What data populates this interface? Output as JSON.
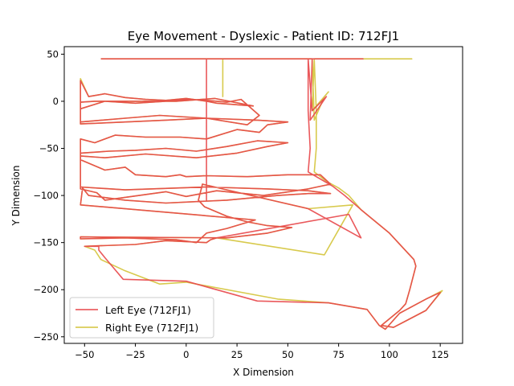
{
  "chart_data": {
    "type": "line",
    "title": "Eye Movement - Dyslexic - Patient ID: 712FJ1",
    "xlabel": "X Dimension",
    "ylabel": "Y Dimension",
    "xlim": [
      -60,
      136
    ],
    "ylim": [
      -257,
      58
    ],
    "xticks": [
      -50,
      -25,
      0,
      25,
      50,
      75,
      100,
      125
    ],
    "yticks": [
      50,
      0,
      -50,
      -100,
      -150,
      -200,
      -250
    ],
    "grid": false,
    "legend_position": "lower-left",
    "series": [
      {
        "name": "Left Eye (712FJ1)",
        "color": "#e8474a",
        "points": [
          [
            -42,
            45
          ],
          [
            10,
            45
          ],
          [
            10,
            44
          ],
          [
            10,
            -105
          ],
          [
            10,
            45
          ],
          [
            62,
            45
          ],
          [
            62,
            44
          ],
          [
            61,
            -20
          ],
          [
            69,
            5
          ],
          [
            62,
            -10
          ],
          [
            60,
            45
          ],
          [
            86,
            45
          ],
          [
            87,
            45
          ],
          [
            60,
            45
          ],
          [
            60,
            44
          ],
          [
            60,
            -10
          ],
          [
            61,
            -50
          ],
          [
            60,
            -75
          ],
          [
            68,
            -85
          ],
          [
            72,
            -90
          ],
          [
            78,
            -100
          ],
          [
            86,
            -115
          ],
          [
            100,
            -140
          ],
          [
            112,
            -168
          ],
          [
            113,
            -175
          ],
          [
            110,
            -200
          ],
          [
            108,
            -215
          ],
          [
            105,
            -222
          ],
          [
            96,
            -238
          ],
          [
            102,
            -240
          ],
          [
            118,
            -222
          ],
          [
            125,
            -203
          ],
          [
            118,
            -210
          ],
          [
            105,
            -225
          ],
          [
            98,
            -242
          ],
          [
            95,
            -238
          ],
          [
            89,
            -221
          ],
          [
            70,
            -214
          ],
          [
            35,
            -212
          ],
          [
            0,
            -191
          ],
          [
            -31,
            -189
          ],
          [
            -40,
            -166
          ],
          [
            -43,
            -158
          ],
          [
            -43,
            -154
          ],
          [
            -50,
            -154
          ],
          [
            -25,
            -152
          ],
          [
            -10,
            -148
          ],
          [
            10,
            -150
          ],
          [
            12,
            -147
          ],
          [
            15,
            -145
          ],
          [
            80,
            -120
          ],
          [
            86,
            -145
          ],
          [
            60,
            -114
          ],
          [
            38,
            -103
          ],
          [
            20,
            -94
          ],
          [
            8,
            -88
          ],
          [
            6,
            -105
          ],
          [
            9,
            -112
          ],
          [
            20,
            -122
          ],
          [
            30,
            -128
          ],
          [
            40,
            -132
          ],
          [
            52,
            -134
          ],
          [
            40,
            -140
          ],
          [
            20,
            -145
          ],
          [
            -52,
            -144
          ],
          [
            -52,
            -145
          ],
          [
            -52,
            -146
          ],
          [
            -30,
            -145
          ],
          [
            -5,
            -147
          ],
          [
            5,
            -150
          ],
          [
            10,
            -140
          ],
          [
            20,
            -135
          ],
          [
            34,
            -126
          ],
          [
            -52,
            -110
          ],
          [
            -51,
            -92
          ],
          [
            -48,
            -100
          ],
          [
            -30,
            -105
          ],
          [
            -10,
            -108
          ],
          [
            20,
            -105
          ],
          [
            45,
            -100
          ],
          [
            60,
            -98
          ],
          [
            71,
            -98
          ],
          [
            60,
            -95
          ],
          [
            40,
            -93
          ],
          [
            10,
            -91
          ],
          [
            -30,
            -94
          ],
          [
            -52,
            -91
          ],
          [
            -52,
            -62
          ],
          [
            -40,
            -73
          ],
          [
            -30,
            -70
          ],
          [
            -25,
            -78
          ],
          [
            -10,
            -80
          ],
          [
            -3,
            -78
          ],
          [
            0,
            -80
          ],
          [
            10,
            -79
          ],
          [
            30,
            -80
          ],
          [
            50,
            -78
          ],
          [
            66,
            -78
          ],
          [
            71,
            -88
          ],
          [
            60,
            -93
          ],
          [
            38,
            -100
          ],
          [
            15,
            -95
          ],
          [
            0,
            -101
          ],
          [
            -10,
            -96
          ],
          [
            -30,
            -102
          ],
          [
            -40,
            -105
          ],
          [
            -44,
            -97
          ],
          [
            -52,
            -93
          ],
          [
            -52,
            -55
          ],
          [
            -38,
            -53
          ],
          [
            -25,
            -52
          ],
          [
            -10,
            -50
          ],
          [
            5,
            -53
          ],
          [
            20,
            -48
          ],
          [
            35,
            -42
          ],
          [
            50,
            -44
          ],
          [
            40,
            -48
          ],
          [
            25,
            -55
          ],
          [
            5,
            -60
          ],
          [
            -20,
            -56
          ],
          [
            -40,
            -60
          ],
          [
            -52,
            -58
          ],
          [
            -52,
            -40
          ],
          [
            -45,
            -44
          ],
          [
            -35,
            -36
          ],
          [
            -20,
            -38
          ],
          [
            -3,
            -38
          ],
          [
            10,
            -40
          ],
          [
            25,
            -30
          ],
          [
            36,
            -33
          ],
          [
            40,
            -25
          ],
          [
            50,
            -22
          ],
          [
            35,
            -20
          ],
          [
            10,
            -18
          ],
          [
            -10,
            -20
          ],
          [
            -30,
            -22
          ],
          [
            -52,
            -24
          ],
          [
            -52,
            -8
          ],
          [
            -40,
            0
          ],
          [
            -25,
            -2
          ],
          [
            -10,
            0
          ],
          [
            0,
            2
          ],
          [
            10,
            1
          ],
          [
            20,
            -1
          ],
          [
            27,
            2
          ],
          [
            36,
            -15
          ],
          [
            30,
            -25
          ],
          [
            10,
            -18
          ],
          [
            -13,
            -15
          ],
          [
            -30,
            -18
          ],
          [
            -52,
            -22
          ],
          [
            -52,
            22
          ],
          [
            -48,
            5
          ],
          [
            -40,
            8
          ],
          [
            -30,
            4
          ],
          [
            -20,
            2
          ],
          [
            -10,
            1
          ],
          [
            0,
            3
          ],
          [
            10,
            0
          ],
          [
            15,
            -2
          ],
          [
            33,
            -5
          ],
          [
            14,
            3
          ],
          [
            -5,
            0
          ],
          [
            -45,
            0
          ],
          [
            -52,
            -1
          ]
        ]
      },
      {
        "name": "Right Eye (712FJ1)",
        "color": "#d4c43a",
        "points": [
          [
            -42,
            45
          ],
          [
            18,
            45
          ],
          [
            18,
            44
          ],
          [
            18,
            5
          ],
          [
            18,
            45
          ],
          [
            62,
            45
          ],
          [
            62,
            44
          ],
          [
            63,
            -20
          ],
          [
            68,
            5
          ],
          [
            70,
            10
          ],
          [
            62,
            -10
          ],
          [
            63,
            45
          ],
          [
            110,
            45
          ],
          [
            111,
            45
          ],
          [
            63,
            45
          ],
          [
            63,
            44
          ],
          [
            64,
            -10
          ],
          [
            64,
            -50
          ],
          [
            63,
            -75
          ],
          [
            69,
            -85
          ],
          [
            75,
            -92
          ],
          [
            80,
            -100
          ],
          [
            86,
            -115
          ],
          [
            100,
            -140
          ],
          [
            112,
            -168
          ],
          [
            113,
            -175
          ],
          [
            110,
            -200
          ],
          [
            108,
            -215
          ],
          [
            105,
            -222
          ],
          [
            96,
            -238
          ],
          [
            102,
            -240
          ],
          [
            118,
            -222
          ],
          [
            126,
            -201
          ],
          [
            118,
            -210
          ],
          [
            105,
            -225
          ],
          [
            98,
            -242
          ],
          [
            95,
            -238
          ],
          [
            89,
            -221
          ],
          [
            70,
            -214
          ],
          [
            45,
            -210
          ],
          [
            0,
            -192
          ],
          [
            -13,
            -194
          ],
          [
            -30,
            -180
          ],
          [
            -42,
            -168
          ],
          [
            -45,
            -158
          ],
          [
            -50,
            -154
          ],
          [
            -25,
            -152
          ],
          [
            -10,
            -148
          ],
          [
            10,
            -150
          ],
          [
            12,
            -147
          ],
          [
            15,
            -145
          ],
          [
            68,
            -163
          ],
          [
            82,
            -110
          ],
          [
            60,
            -114
          ],
          [
            38,
            -103
          ],
          [
            20,
            -94
          ],
          [
            8,
            -88
          ],
          [
            6,
            -105
          ],
          [
            9,
            -112
          ],
          [
            20,
            -122
          ],
          [
            30,
            -128
          ],
          [
            40,
            -132
          ],
          [
            52,
            -134
          ],
          [
            40,
            -140
          ],
          [
            20,
            -145
          ],
          [
            -52,
            -144
          ],
          [
            -52,
            -146
          ],
          [
            -30,
            -145
          ],
          [
            -5,
            -147
          ],
          [
            5,
            -150
          ],
          [
            10,
            -140
          ],
          [
            20,
            -135
          ],
          [
            34,
            -126
          ],
          [
            -52,
            -110
          ],
          [
            -51,
            -92
          ],
          [
            -48,
            -100
          ],
          [
            -30,
            -105
          ],
          [
            -10,
            -108
          ],
          [
            20,
            -105
          ],
          [
            45,
            -100
          ],
          [
            60,
            -98
          ],
          [
            71,
            -98
          ],
          [
            60,
            -95
          ],
          [
            40,
            -93
          ],
          [
            10,
            -91
          ],
          [
            -30,
            -94
          ],
          [
            -52,
            -91
          ],
          [
            -52,
            -62
          ],
          [
            -40,
            -73
          ],
          [
            -30,
            -70
          ],
          [
            -25,
            -78
          ],
          [
            -10,
            -80
          ],
          [
            -3,
            -78
          ],
          [
            0,
            -80
          ],
          [
            10,
            -79
          ],
          [
            30,
            -80
          ],
          [
            50,
            -78
          ],
          [
            66,
            -78
          ],
          [
            71,
            -88
          ],
          [
            60,
            -93
          ],
          [
            38,
            -100
          ],
          [
            15,
            -95
          ],
          [
            0,
            -101
          ],
          [
            -10,
            -96
          ],
          [
            -30,
            -102
          ],
          [
            -40,
            -105
          ],
          [
            -44,
            -97
          ],
          [
            -52,
            -93
          ],
          [
            -52,
            -55
          ],
          [
            -38,
            -53
          ],
          [
            -25,
            -52
          ],
          [
            -10,
            -50
          ],
          [
            5,
            -53
          ],
          [
            20,
            -48
          ],
          [
            35,
            -42
          ],
          [
            50,
            -44
          ],
          [
            40,
            -48
          ],
          [
            25,
            -55
          ],
          [
            5,
            -60
          ],
          [
            -20,
            -56
          ],
          [
            -40,
            -60
          ],
          [
            -52,
            -58
          ],
          [
            -52,
            -40
          ],
          [
            -45,
            -44
          ],
          [
            -35,
            -36
          ],
          [
            -20,
            -38
          ],
          [
            -3,
            -38
          ],
          [
            10,
            -40
          ],
          [
            25,
            -30
          ],
          [
            36,
            -33
          ],
          [
            40,
            -25
          ],
          [
            50,
            -22
          ],
          [
            35,
            -20
          ],
          [
            10,
            -18
          ],
          [
            -10,
            -20
          ],
          [
            -30,
            -22
          ],
          [
            -52,
            -24
          ],
          [
            -52,
            -8
          ],
          [
            -40,
            0
          ],
          [
            -25,
            -2
          ],
          [
            -10,
            0
          ],
          [
            0,
            2
          ],
          [
            10,
            1
          ],
          [
            20,
            -1
          ],
          [
            27,
            2
          ],
          [
            36,
            -15
          ],
          [
            30,
            -25
          ],
          [
            10,
            -18
          ],
          [
            -13,
            -15
          ],
          [
            -30,
            -18
          ],
          [
            -52,
            -22
          ],
          [
            -52,
            24
          ],
          [
            -48,
            5
          ],
          [
            -40,
            8
          ],
          [
            -30,
            4
          ],
          [
            -20,
            2
          ],
          [
            -10,
            1
          ],
          [
            0,
            3
          ],
          [
            10,
            0
          ],
          [
            15,
            -2
          ],
          [
            33,
            -5
          ],
          [
            14,
            3
          ],
          [
            -5,
            0
          ],
          [
            -45,
            0
          ],
          [
            -52,
            -1
          ],
          [
            -52,
            14
          ]
        ]
      }
    ]
  }
}
